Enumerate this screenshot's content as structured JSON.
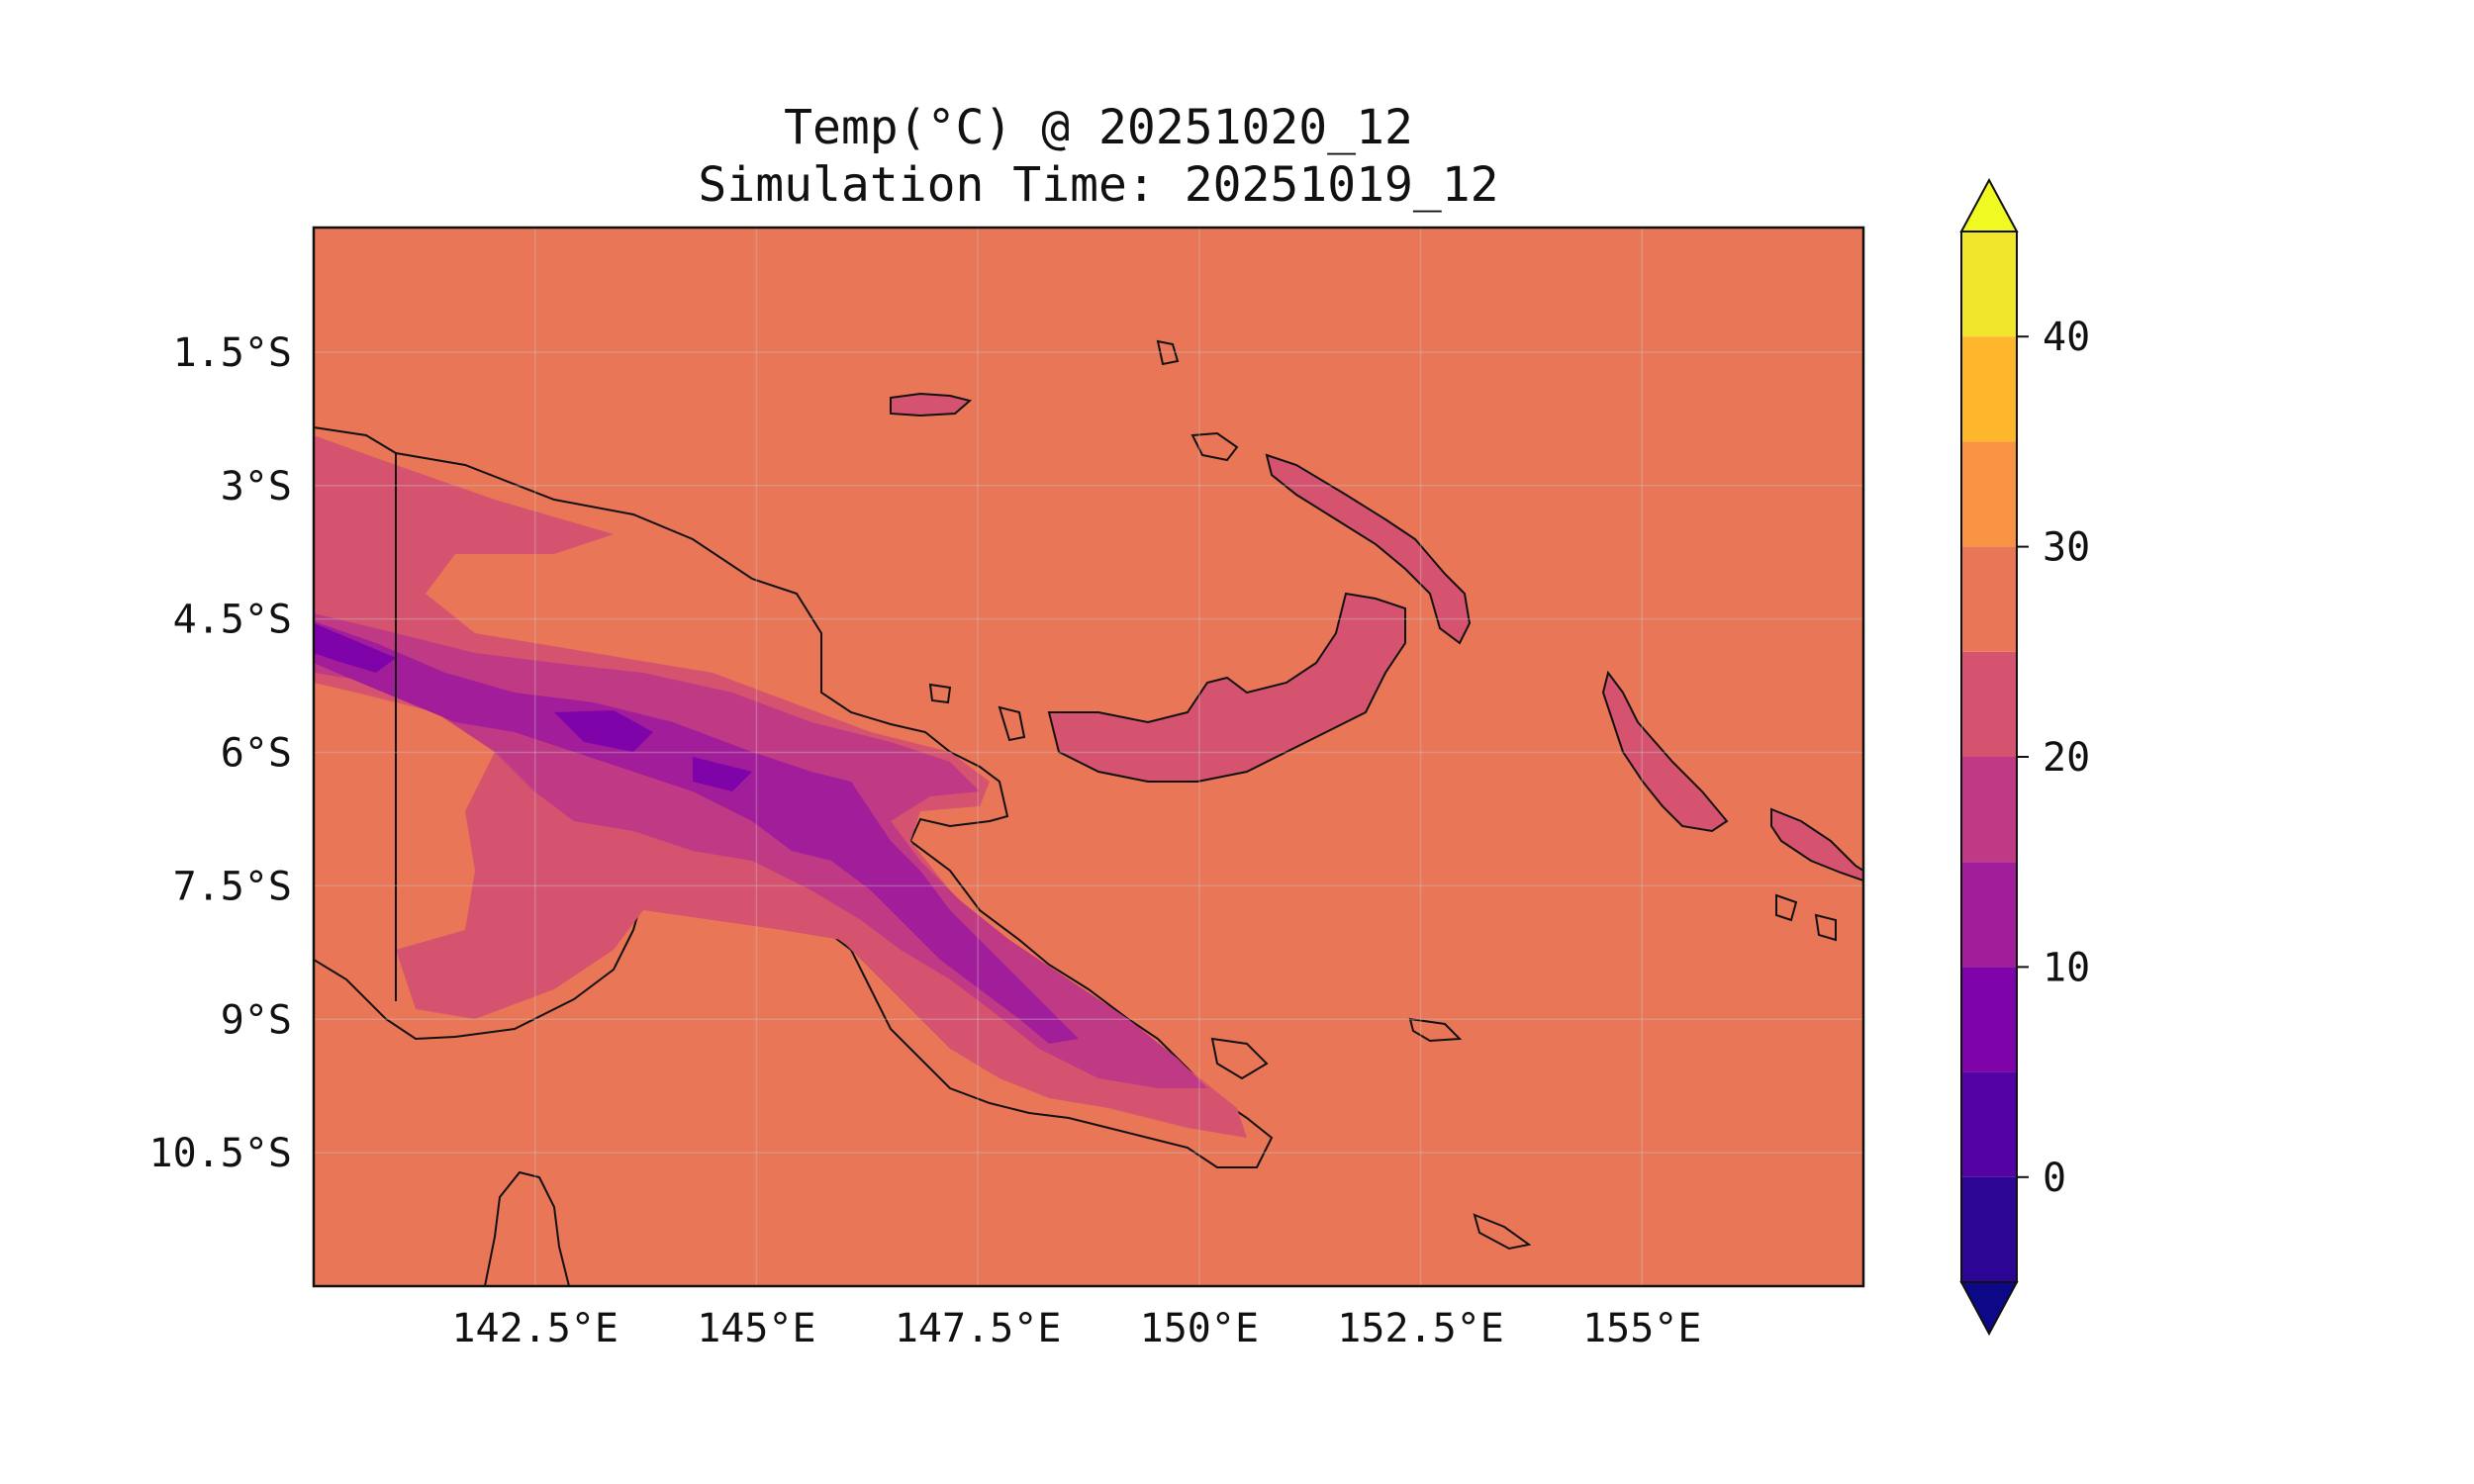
{
  "title": "Temp(°C) @ 20251020_12",
  "subtitle": "Simulation Time: 20251019_12",
  "colormap": "plasma",
  "map": {
    "type": "filled-contour",
    "region": "Papua New Guinea",
    "lon_range": [
      140.0,
      157.5
    ],
    "lat_range": [
      -12.0,
      -0.1
    ],
    "gridlines": true,
    "coastlines": true,
    "ocean_color": "#e97657",
    "x_ticks": [
      142.5,
      145,
      147.5,
      150,
      152.5,
      155
    ],
    "y_ticks": [
      -1.5,
      -3,
      -4.5,
      -6,
      -7.5,
      -9,
      -10.5
    ],
    "x_tick_labels": [
      "142.5°E",
      "145°E",
      "147.5°E",
      "150°E",
      "152.5°E",
      "155°E"
    ],
    "y_tick_labels": [
      "1.5°S",
      "3°S",
      "4.5°S",
      "6°S",
      "7.5°S",
      "9°S",
      "10.5°S"
    ]
  },
  "colorbar": {
    "levels": [
      -5,
      0,
      5,
      10,
      15,
      20,
      25,
      30,
      35,
      40,
      45
    ],
    "extend": "both",
    "tick_values": [
      0,
      10,
      20,
      30,
      40
    ],
    "tick_labels": [
      "0",
      "10",
      "20",
      "30",
      "40"
    ],
    "colors": [
      "#2c0594",
      "#5302a3",
      "#7e03a8",
      "#a21d9a",
      "#bf3984",
      "#d5536f",
      "#e97657",
      "#f79342",
      "#feb72d",
      "#f1e62b"
    ],
    "under_color": "#0d0887",
    "over_color": "#f0f921"
  }
}
